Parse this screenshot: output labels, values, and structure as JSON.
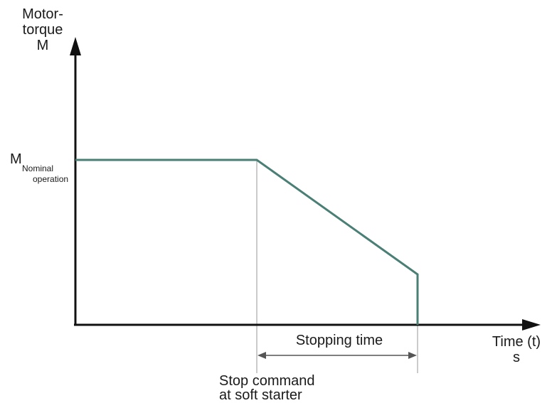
{
  "chart_data": {
    "type": "line",
    "title": "",
    "ylabel_lines": [
      "Motor-",
      "torque",
      "M"
    ],
    "xlabel_lines": [
      "Time (t)",
      "s"
    ],
    "y_reference": {
      "symbol": "M",
      "subscript_lines": [
        "Nominal",
        "operation"
      ]
    },
    "series": [
      {
        "color": "#4a7f76",
        "points": [
          {
            "x": "start",
            "y": "M Nominal operation"
          },
          {
            "x": "Stop command at soft starter",
            "y": "M Nominal operation"
          },
          {
            "x": "end of Stopping time",
            "y": "reduced torque"
          },
          {
            "x": "end of Stopping time",
            "y": 0
          }
        ]
      }
    ],
    "annotations": {
      "stop_event_lines": [
        "Stop command",
        "at soft starter"
      ],
      "duration_label": "Stopping time"
    },
    "ticks": "none",
    "grid": false,
    "legend": "none"
  },
  "colors": {
    "axis": "#111111",
    "curve": "#4a7f76",
    "marker_line": "#b5b5b5",
    "dimension_arrow": "#555555"
  }
}
